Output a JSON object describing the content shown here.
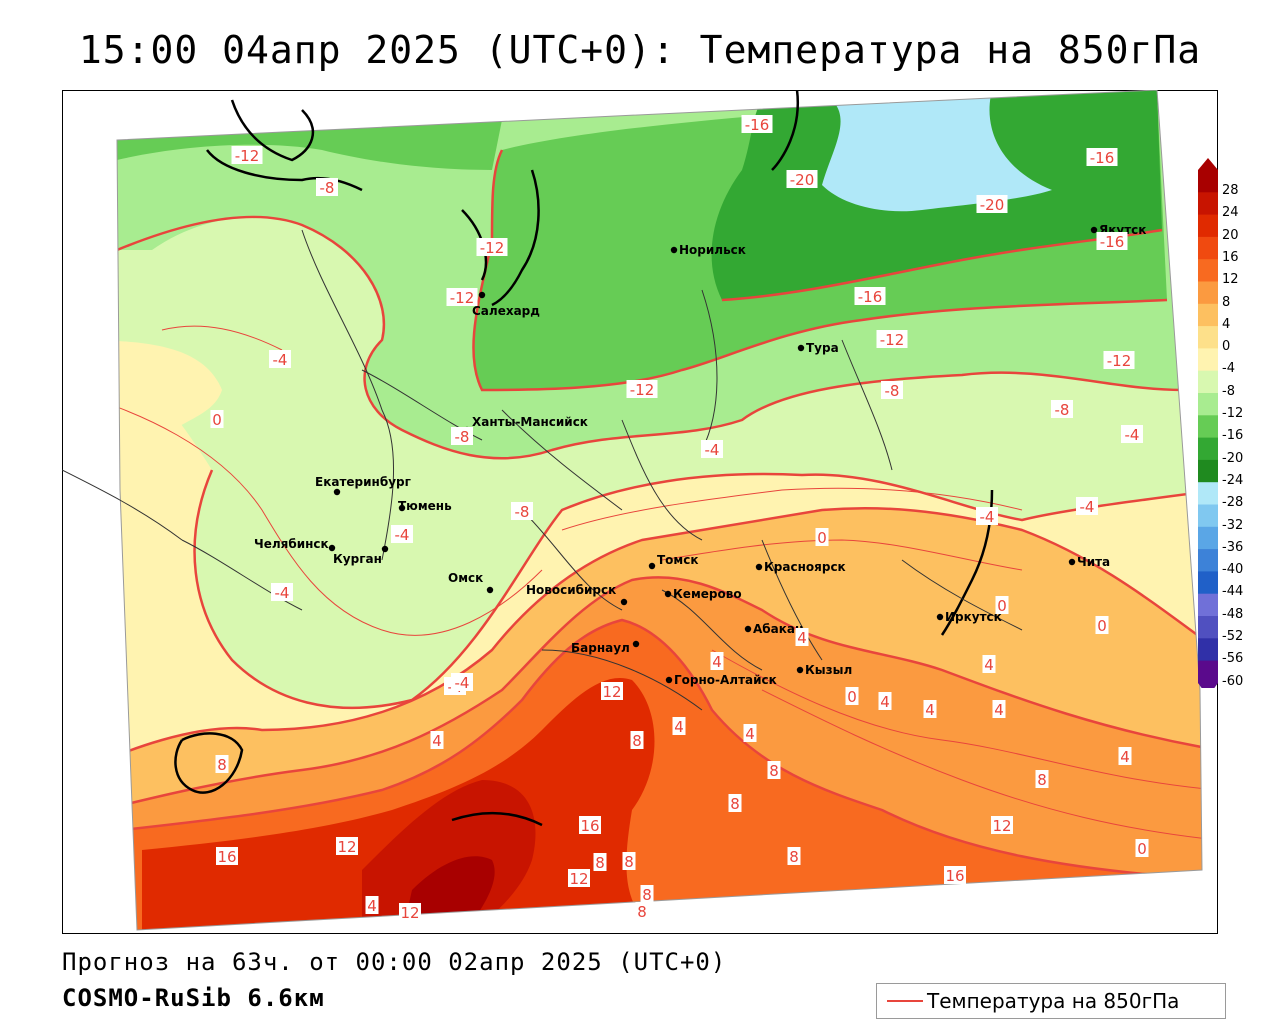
{
  "header": {
    "title": "15:00 04апр 2025 (UTC+0): Температура на 850гПа"
  },
  "footer": {
    "forecast": "Прогноз на 63ч. от 00:00 02апр 2025 (UTC+0)",
    "model": "COSMO-RuSib 6.6км"
  },
  "legend": {
    "label": "Температура на 850гПа",
    "line_color": "#e8453c"
  },
  "scale": {
    "levels": [
      "28",
      "24",
      "20",
      "16",
      "12",
      "8",
      "4",
      "0",
      "-4",
      "-8",
      "-12",
      "-16",
      "-20",
      "-24",
      "-28",
      "-32",
      "-36",
      "-40",
      "-44",
      "-48",
      "-52",
      "-56",
      "-60"
    ],
    "colors": [
      "#a80000",
      "#c81400",
      "#e02a00",
      "#f04a10",
      "#f86a20",
      "#fb9a40",
      "#fdc060",
      "#fde08a",
      "#fff3b0",
      "#d8f8b0",
      "#a8ec90",
      "#66cc55",
      "#33a833",
      "#1f8a1f",
      "#b0e8f8",
      "#80c8f0",
      "#5aa6e6",
      "#3d82d8",
      "#2060c8",
      "#7070d8",
      "#5050c0",
      "#3030a8",
      "#5a0a8c"
    ]
  },
  "cities": [
    "Норильск",
    "Якутск",
    "Салехард",
    "Тура",
    "Ханты-Мансийск",
    "Екатеринбург",
    "Тюмень",
    "Челябинск",
    "Курган",
    "Омск",
    "Новосибирск",
    "Томск",
    "Кемерово",
    "Красноярск",
    "Барнаул",
    "Абакан",
    "Горно-Алтайск",
    "Кызыл",
    "Иркутск",
    "Чита"
  ],
  "contour_labels": [
    "-12",
    "-8",
    "-12",
    "-12",
    "-16",
    "-20",
    "-20",
    "-16",
    "-16",
    "-16",
    "-12",
    "-12",
    "-12",
    "-4",
    "0",
    "-4",
    "-8",
    "-4",
    "-8",
    "-8",
    "-4",
    "-4",
    "-4",
    "-8",
    "-4",
    "-4",
    "0",
    "0",
    "0",
    "4",
    "4",
    "12",
    "8",
    "4",
    "4",
    "8",
    "4",
    "0",
    "4",
    "4",
    "8",
    "4",
    "8",
    "12",
    "16",
    "8",
    "8",
    "12",
    "8",
    "8",
    "16",
    "12",
    "16",
    "4",
    "12",
    "8",
    "0",
    "4",
    "4",
    "-4",
    "4",
    "8",
    "4"
  ],
  "colors": {
    "contour": "#e8453c",
    "border": "#000000",
    "outer_bg": "#ffffff"
  }
}
